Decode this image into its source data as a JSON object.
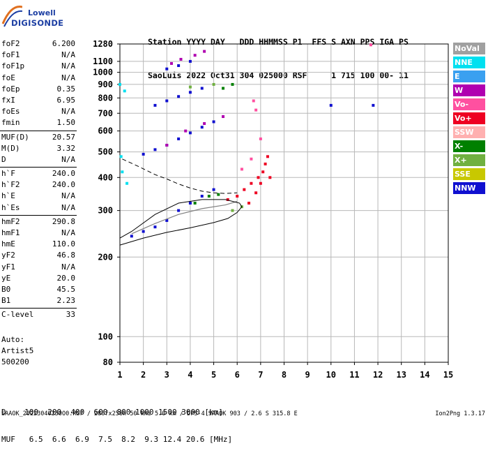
{
  "logo": {
    "line1": "Lowell",
    "line2": "DIGISONDE"
  },
  "header": {
    "line1": "Station YYYY DAY   DDD HHMMSS P1  FFS S AXN PPS IGA PS",
    "line2": "SaoLuis 2022 Oct31 304 025000 RSF     1 715 100 00- 11"
  },
  "params": [
    [
      {
        "key": "foF2",
        "value": "6.200"
      },
      {
        "key": "foF1",
        "value": "N/A"
      },
      {
        "key": "foF1p",
        "value": "N/A"
      },
      {
        "key": "foE",
        "value": "N/A"
      },
      {
        "key": "foEp",
        "value": "0.35"
      },
      {
        "key": "fxI",
        "value": "6.95"
      },
      {
        "key": "foEs",
        "value": "N/A"
      },
      {
        "key": "fmin",
        "value": "1.50"
      }
    ],
    [
      {
        "key": "MUF(D)",
        "value": "20.57"
      },
      {
        "key": "M(D)",
        "value": "3.32"
      },
      {
        "key": "D",
        "value": "N/A"
      }
    ],
    [
      {
        "key": "h`F",
        "value": "240.0"
      },
      {
        "key": "h`F2",
        "value": "240.0"
      },
      {
        "key": "h`E",
        "value": "N/A"
      },
      {
        "key": "h`Es",
        "value": "N/A"
      }
    ],
    [
      {
        "key": "hmF2",
        "value": "290.8"
      },
      {
        "key": "hmF1",
        "value": "N/A"
      },
      {
        "key": "hmE",
        "value": "110.0"
      },
      {
        "key": "yF2",
        "value": "46.8"
      },
      {
        "key": "yF1",
        "value": "N/A"
      },
      {
        "key": "yE",
        "value": "20.0"
      },
      {
        "key": "B0",
        "value": "45.5"
      },
      {
        "key": "B1",
        "value": "2.23"
      }
    ],
    [
      {
        "key": "C-level",
        "value": "33"
      }
    ]
  ],
  "auto": {
    "line1": "Auto:",
    "line2": "Artist5",
    "line3": "500200"
  },
  "legend": [
    {
      "label": "NoVal",
      "color": "#a0a0a0"
    },
    {
      "label": "NNE",
      "color": "#00e0f0"
    },
    {
      "label": "E",
      "color": "#3aa0f0"
    },
    {
      "label": "W",
      "color": "#b000b0"
    },
    {
      "label": "Vo-",
      "color": "#ff50a0"
    },
    {
      "label": "Vo+",
      "color": "#ee0022"
    },
    {
      "label": "SSW",
      "color": "#ffb0b0"
    },
    {
      "label": "X-",
      "color": "#008000"
    },
    {
      "label": "X+",
      "color": "#70b040"
    },
    {
      "label": "SSE",
      "color": "#c8c800"
    },
    {
      "label": "NNW",
      "color": "#1010d0"
    }
  ],
  "chart_data": {
    "type": "scatter",
    "title": "",
    "xlabel": "",
    "ylabel": "",
    "xlim": [
      1,
      15
    ],
    "ylim": [
      80,
      1280
    ],
    "y_scale": "log",
    "x_ticks": [
      1,
      2,
      3,
      4,
      5,
      6,
      7,
      8,
      9,
      10,
      11,
      12,
      13,
      14,
      15
    ],
    "y_ticks": [
      80,
      100,
      200,
      300,
      400,
      500,
      600,
      700,
      800,
      900,
      1000,
      1100,
      1280
    ],
    "grid": true,
    "series": [
      {
        "name": "Vo+",
        "color": "#ee0022",
        "points": [
          [
            5.6,
            330
          ],
          [
            6.0,
            340
          ],
          [
            6.3,
            360
          ],
          [
            6.6,
            380
          ],
          [
            6.9,
            400
          ],
          [
            7.1,
            420
          ],
          [
            7.2,
            450
          ],
          [
            7.3,
            480
          ],
          [
            6.8,
            350
          ],
          [
            6.5,
            320
          ],
          [
            7.0,
            380
          ],
          [
            7.4,
            400
          ]
        ]
      },
      {
        "name": "NNW",
        "color": "#1010d0",
        "points": [
          [
            1.5,
            240
          ],
          [
            2.0,
            250
          ],
          [
            2.5,
            260
          ],
          [
            3.0,
            275
          ],
          [
            3.5,
            300
          ],
          [
            4.0,
            320
          ],
          [
            4.5,
            340
          ],
          [
            5.0,
            360
          ],
          [
            2.0,
            490
          ],
          [
            2.5,
            510
          ],
          [
            3.0,
            530
          ],
          [
            3.5,
            560
          ],
          [
            4.0,
            590
          ],
          [
            4.5,
            620
          ],
          [
            5.0,
            650
          ],
          [
            2.5,
            750
          ],
          [
            3.0,
            780
          ],
          [
            3.5,
            810
          ],
          [
            4.0,
            840
          ],
          [
            4.5,
            870
          ],
          [
            3.0,
            1030
          ],
          [
            3.5,
            1060
          ],
          [
            4.0,
            1100
          ],
          [
            10.0,
            750
          ],
          [
            11.8,
            750
          ]
        ]
      },
      {
        "name": "W",
        "color": "#b000b0",
        "points": [
          [
            3.2,
            1080
          ],
          [
            3.6,
            1120
          ],
          [
            4.2,
            1160
          ],
          [
            4.6,
            1200
          ],
          [
            3.0,
            530
          ],
          [
            3.8,
            600
          ],
          [
            4.6,
            640
          ],
          [
            5.4,
            680
          ]
        ]
      },
      {
        "name": "X-",
        "color": "#008000",
        "points": [
          [
            5.4,
            870
          ],
          [
            5.8,
            900
          ],
          [
            4.2,
            320
          ],
          [
            4.8,
            340
          ],
          [
            5.2,
            345
          ]
        ]
      },
      {
        "name": "NNE",
        "color": "#00e0f0",
        "points": [
          [
            1.0,
            900
          ],
          [
            1.2,
            850
          ],
          [
            1.1,
            420
          ],
          [
            1.3,
            380
          ],
          [
            1.05,
            480
          ]
        ]
      },
      {
        "name": "Vo-",
        "color": "#ff50a0",
        "points": [
          [
            6.2,
            430
          ],
          [
            6.6,
            470
          ],
          [
            7.0,
            560
          ],
          [
            6.8,
            720
          ],
          [
            6.7,
            780
          ],
          [
            11.7,
            1270
          ]
        ]
      },
      {
        "name": "X+",
        "color": "#70b040",
        "points": [
          [
            4.0,
            880
          ],
          [
            5.0,
            900
          ],
          [
            5.8,
            300
          ],
          [
            6.2,
            310
          ]
        ]
      }
    ],
    "trace_solid": [
      [
        1.0,
        222
      ],
      [
        2.0,
        236
      ],
      [
        3.0,
        248
      ],
      [
        4.0,
        258
      ],
      [
        5.0,
        270
      ],
      [
        5.6,
        280
      ],
      [
        6.0,
        295
      ],
      [
        6.2,
        310
      ],
      [
        6.1,
        320
      ],
      [
        5.5,
        330
      ],
      [
        4.5,
        330
      ],
      [
        3.5,
        320
      ],
      [
        2.5,
        290
      ],
      [
        1.5,
        250
      ],
      [
        1.0,
        236
      ]
    ],
    "trace_dashed": [
      [
        1.1,
        470
      ],
      [
        1.8,
        440
      ],
      [
        2.5,
        410
      ],
      [
        3.0,
        395
      ],
      [
        3.5,
        378
      ],
      [
        4.0,
        365
      ],
      [
        4.5,
        355
      ],
      [
        5.0,
        350
      ],
      [
        5.5,
        348
      ],
      [
        6.0,
        350
      ]
    ],
    "trace_grey": [
      [
        1.5,
        245
      ],
      [
        2.5,
        268
      ],
      [
        3.5,
        290
      ],
      [
        4.5,
        305
      ],
      [
        5.5,
        315
      ],
      [
        6.0,
        325
      ]
    ]
  },
  "footer": {
    "line1": "D    100  200  400  600  800 1000 1500 3000 [km]",
    "line2": "MUF   6.5  6.6  6.9  7.5  8.2  9.3 12.4 20.6 [MHz]"
  },
  "bottom": {
    "text": "SAAOK_20223040250O0.RSF / 280fx256h 50 kHz 5.0 km / DPS-4 SAAOK 903 / 2.6 S 315.8 E",
    "version": "Ion2Png 1.3.17"
  }
}
